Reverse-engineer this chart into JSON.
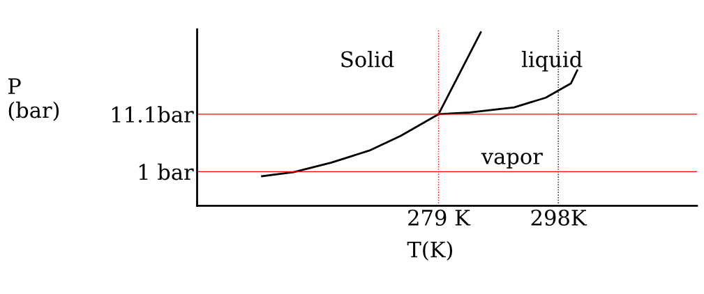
{
  "chart_data": {
    "type": "line",
    "xlabel": "T(K)",
    "ylabel": "P\n(bar)",
    "xlim": [
      240.7,
      320
    ],
    "ylim": [
      -5,
      26
    ],
    "xticks": [
      {
        "value": 279,
        "label": "279 K"
      },
      {
        "value": 298,
        "label": "298K"
      }
    ],
    "yticks": [
      {
        "value": 1,
        "label": "1 bar"
      },
      {
        "value": 11.1,
        "label": "11.1bar"
      }
    ],
    "grid": false,
    "marker": "none",
    "line_style": "solid",
    "series": [
      {
        "color": "#000000",
        "x": [
          251,
          256,
          262,
          268,
          273,
          279
        ],
        "values": [
          0.2,
          0.9,
          2.6,
          4.7,
          7.3,
          11.1
        ]
      },
      {
        "color": "#000000",
        "x": [
          279,
          284,
          291,
          296,
          300,
          301
        ],
        "values": [
          11.1,
          11.4,
          12.3,
          14.0,
          16.5,
          18.8
        ]
      },
      {
        "color": "#000000",
        "x": [
          279.0,
          285.7
        ],
        "values": [
          11.1,
          25.5
        ]
      }
    ],
    "ref_lines": [
      {
        "axis": "y",
        "value": 11.1,
        "color": "#ff0000",
        "line_style": "solid"
      },
      {
        "axis": "y",
        "value": 1,
        "color": "#ff0000",
        "line_style": "solid"
      },
      {
        "axis": "x",
        "value": 279,
        "color": "#ff0000",
        "line_style": "dotted"
      },
      {
        "axis": "x",
        "value": 298,
        "color": "#000000",
        "line_style": "dotted"
      }
    ],
    "annotations": [
      "Solid",
      "liquid",
      "vapor"
    ]
  }
}
